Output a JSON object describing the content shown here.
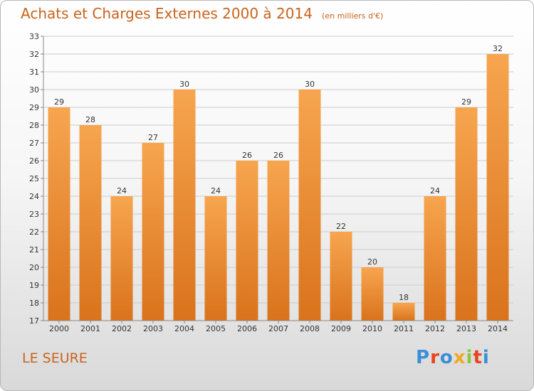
{
  "header": {
    "title": "Achats et Charges Externes 2000 à 2014",
    "subtitle": "(en milliers d'€)"
  },
  "footer": {
    "place": "LE SEURE",
    "logo_text": "Proxiti",
    "logo_colors": [
      "#3a8fd6",
      "#e8451e",
      "#3a8fd6",
      "#f0a81f",
      "#8cc63f",
      "#e8451e",
      "#3a8fd6"
    ]
  },
  "colors": {
    "title": "#c9631d",
    "bar_top": "#f7a54f",
    "bar_bottom": "#d9731c"
  },
  "chart_data": {
    "type": "bar",
    "title": "Achats et Charges Externes 2000 à 2014",
    "subtitle": "(en milliers d'€)",
    "categories": [
      "2000",
      "2001",
      "2002",
      "2003",
      "2004",
      "2005",
      "2006",
      "2007",
      "2008",
      "2009",
      "2010",
      "2011",
      "2012",
      "2013",
      "2014"
    ],
    "values": [
      29,
      28,
      24,
      27,
      30,
      24,
      26,
      26,
      30,
      22,
      20,
      18,
      24,
      29,
      32
    ],
    "ylim": [
      17,
      33
    ],
    "yticks": [
      17,
      18,
      19,
      20,
      21,
      22,
      23,
      24,
      25,
      26,
      27,
      28,
      29,
      30,
      31,
      32,
      33
    ],
    "grid": true,
    "data_labels": true
  }
}
